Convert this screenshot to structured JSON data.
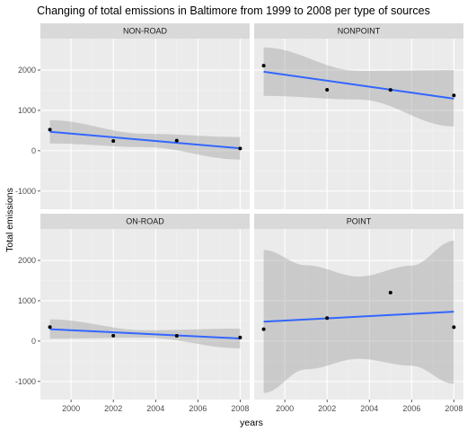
{
  "chart_data": {
    "type": "scatter",
    "title": "Changing of total emissions in Baltimore from 1999 to 2008 per type of sources",
    "xlabel": "years",
    "ylabel": "Total emissions",
    "xlim": [
      1998.55,
      2008.45
    ],
    "ylim": [
      -1450,
      2780
    ],
    "x_ticks": [
      2000,
      2002,
      2004,
      2006,
      2008
    ],
    "y_ticks": [
      -1000,
      0,
      1000,
      2000
    ],
    "layout": "2x2 facet grid, shared axes",
    "panel_background": "#ebebeb",
    "strip_background": "#d9d9d9",
    "fit_color": "#3366ff",
    "band_color": "#999999",
    "point_color": "#000000",
    "panels": [
      {
        "label": "NON-ROAD",
        "points": [
          {
            "x": 1999,
            "y": 523
          },
          {
            "x": 2002,
            "y": 241
          },
          {
            "x": 2005,
            "y": 249
          },
          {
            "x": 2008,
            "y": 55
          }
        ],
        "fit": {
          "x": [
            1999,
            2008
          ],
          "y": [
            470,
            60
          ]
        },
        "band": {
          "x": [
            1999,
            2003.5,
            2008
          ],
          "lower": [
            180,
            90,
            -220
          ],
          "upper": [
            760,
            420,
            340
          ]
        }
      },
      {
        "label": "NONPOINT",
        "points": [
          {
            "x": 1999,
            "y": 2108
          },
          {
            "x": 2002,
            "y": 1510
          },
          {
            "x": 2005,
            "y": 1509
          },
          {
            "x": 2008,
            "y": 1373
          }
        ],
        "fit": {
          "x": [
            1999,
            2008
          ],
          "y": [
            1960,
            1290
          ]
        },
        "band": {
          "x": [
            1999,
            2003.5,
            2008
          ],
          "lower": [
            1360,
            1270,
            600
          ],
          "upper": [
            2560,
            1980,
            2000
          ]
        }
      },
      {
        "label": "ON-ROAD",
        "points": [
          {
            "x": 1999,
            "y": 347
          },
          {
            "x": 2002,
            "y": 134
          },
          {
            "x": 2005,
            "y": 131
          },
          {
            "x": 2008,
            "y": 88
          }
        ],
        "fit": {
          "x": [
            1999,
            2008
          ],
          "y": [
            295,
            65
          ]
        },
        "band": {
          "x": [
            1999,
            2003.5,
            2008
          ],
          "lower": [
            60,
            85,
            -180
          ],
          "upper": [
            540,
            270,
            310
          ]
        }
      },
      {
        "label": "POINT",
        "points": [
          {
            "x": 1999,
            "y": 296
          },
          {
            "x": 2002,
            "y": 569
          },
          {
            "x": 2005,
            "y": 1203
          },
          {
            "x": 2008,
            "y": 345
          }
        ],
        "fit": {
          "x": [
            1999,
            2008
          ],
          "y": [
            480,
            730
          ]
        },
        "band": {
          "x": [
            1999,
            2001,
            2003.5,
            2006,
            2008
          ],
          "lower": [
            -1290,
            -700,
            -440,
            -610,
            -1060
          ],
          "upper": [
            2260,
            1880,
            1600,
            1870,
            2490
          ]
        }
      }
    ]
  }
}
